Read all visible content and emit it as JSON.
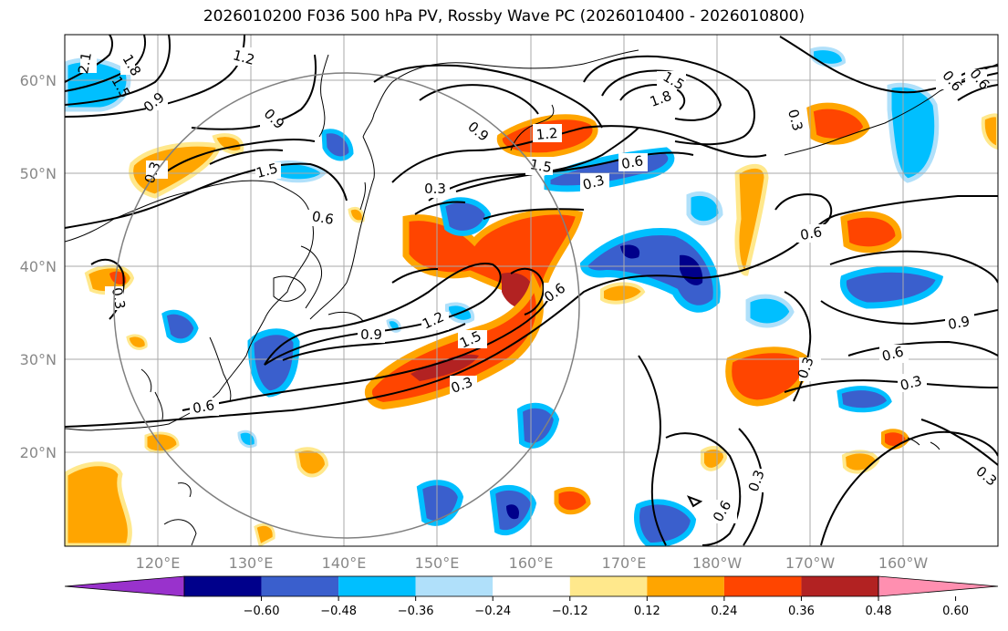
{
  "title": "2026010200 F036 500 hPa PV, Rossby Wave PC (2026010400 - 2026010800)",
  "lat_labels": [
    "60°N",
    "50°N",
    "40°N",
    "30°N",
    "20°N"
  ],
  "lon_labels": [
    "120°E",
    "130°E",
    "140°E",
    "150°E",
    "160°E",
    "170°E",
    "180°W",
    "170°W",
    "160°W"
  ],
  "colorbar": {
    "colors": [
      "#9932cc",
      "#00008b",
      "#3a5fcd",
      "#00bfff",
      "#b0e0fa",
      "#ffffff",
      "#ffe88c",
      "#ffa500",
      "#ff4500",
      "#b22222",
      "#ff8fb0"
    ],
    "ticks": [
      "−0.60",
      "−0.48",
      "−0.36",
      "−0.24",
      "−0.12",
      "0.12",
      "0.24",
      "0.36",
      "0.48",
      "0.60"
    ]
  },
  "contour_labels": [
    "2.1",
    "1.8",
    "1.5",
    "0.9",
    "1.2",
    "0.9",
    "0.3",
    "1.5",
    "0.6",
    "0.3",
    "0.9",
    "1.2",
    "1.5",
    "0.6",
    "0.3",
    "1.5",
    "1.8",
    "0.6",
    "0.3",
    "0.6",
    "0.3",
    "0.9",
    "1.2",
    "1.5",
    "0.3",
    "0.6",
    "0.6",
    "0.3",
    "0.6",
    "0.9",
    "0.3",
    "0.6",
    "0.3",
    "0.3",
    "0.6"
  ]
}
